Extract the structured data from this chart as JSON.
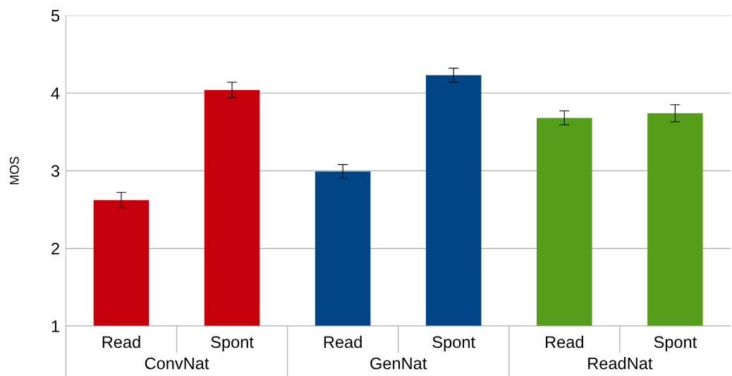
{
  "chart_data": {
    "type": "bar",
    "ylabel": "MOS",
    "categories": [
      "Read",
      "Spont",
      "Read",
      "Spont",
      "Read",
      "Spont"
    ],
    "values": [
      2.62,
      4.04,
      2.99,
      4.23,
      3.68,
      3.74
    ],
    "colors": [
      "#c5000b",
      "#c5000b",
      "#004586",
      "#004586",
      "#579d1c",
      "#579d1c"
    ],
    "errors": [
      0.1,
      0.1,
      0.09,
      0.09,
      0.09,
      0.11
    ],
    "annotations": [
      "ConvNat",
      "GenNat",
      "ReadNat"
    ],
    "ylim": [
      1,
      5
    ],
    "yticks": [
      1,
      2,
      3,
      4,
      5
    ],
    "grid": "y",
    "legend": false
  }
}
